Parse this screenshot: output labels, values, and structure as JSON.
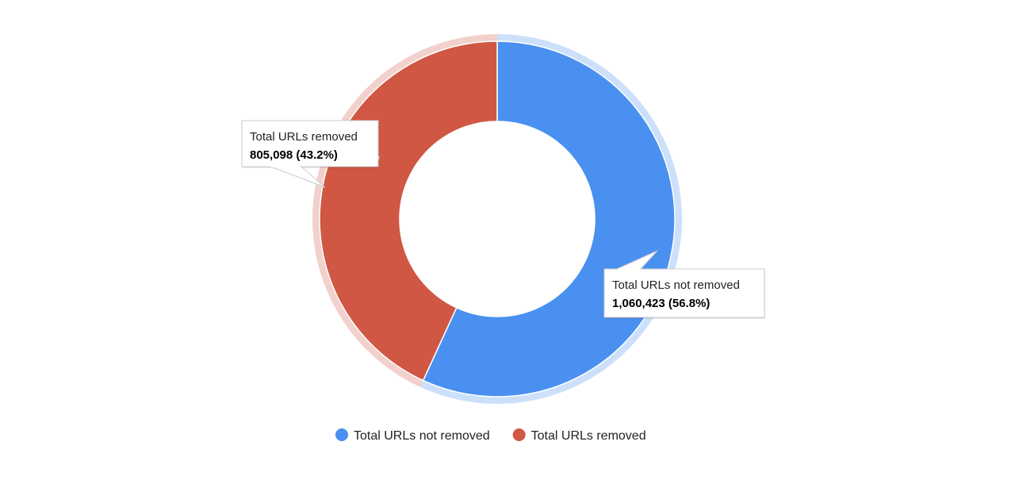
{
  "chart_data": {
    "type": "pie",
    "variant": "donut",
    "title": "",
    "series": [
      {
        "name": "Total URLs not removed",
        "value": 1060423,
        "percent_label": "56.8%",
        "tooltip_value": "1,060,423 (56.8%)",
        "color": "#4a90f0"
      },
      {
        "name": "Total URLs removed",
        "value": 805098,
        "percent_label": "43.2%",
        "tooltip_value": "805,098 (43.2%)",
        "color": "#d05744"
      }
    ],
    "legend_position": "bottom",
    "highlighted": [
      "Total URLs removed",
      "Total URLs not removed"
    ]
  }
}
